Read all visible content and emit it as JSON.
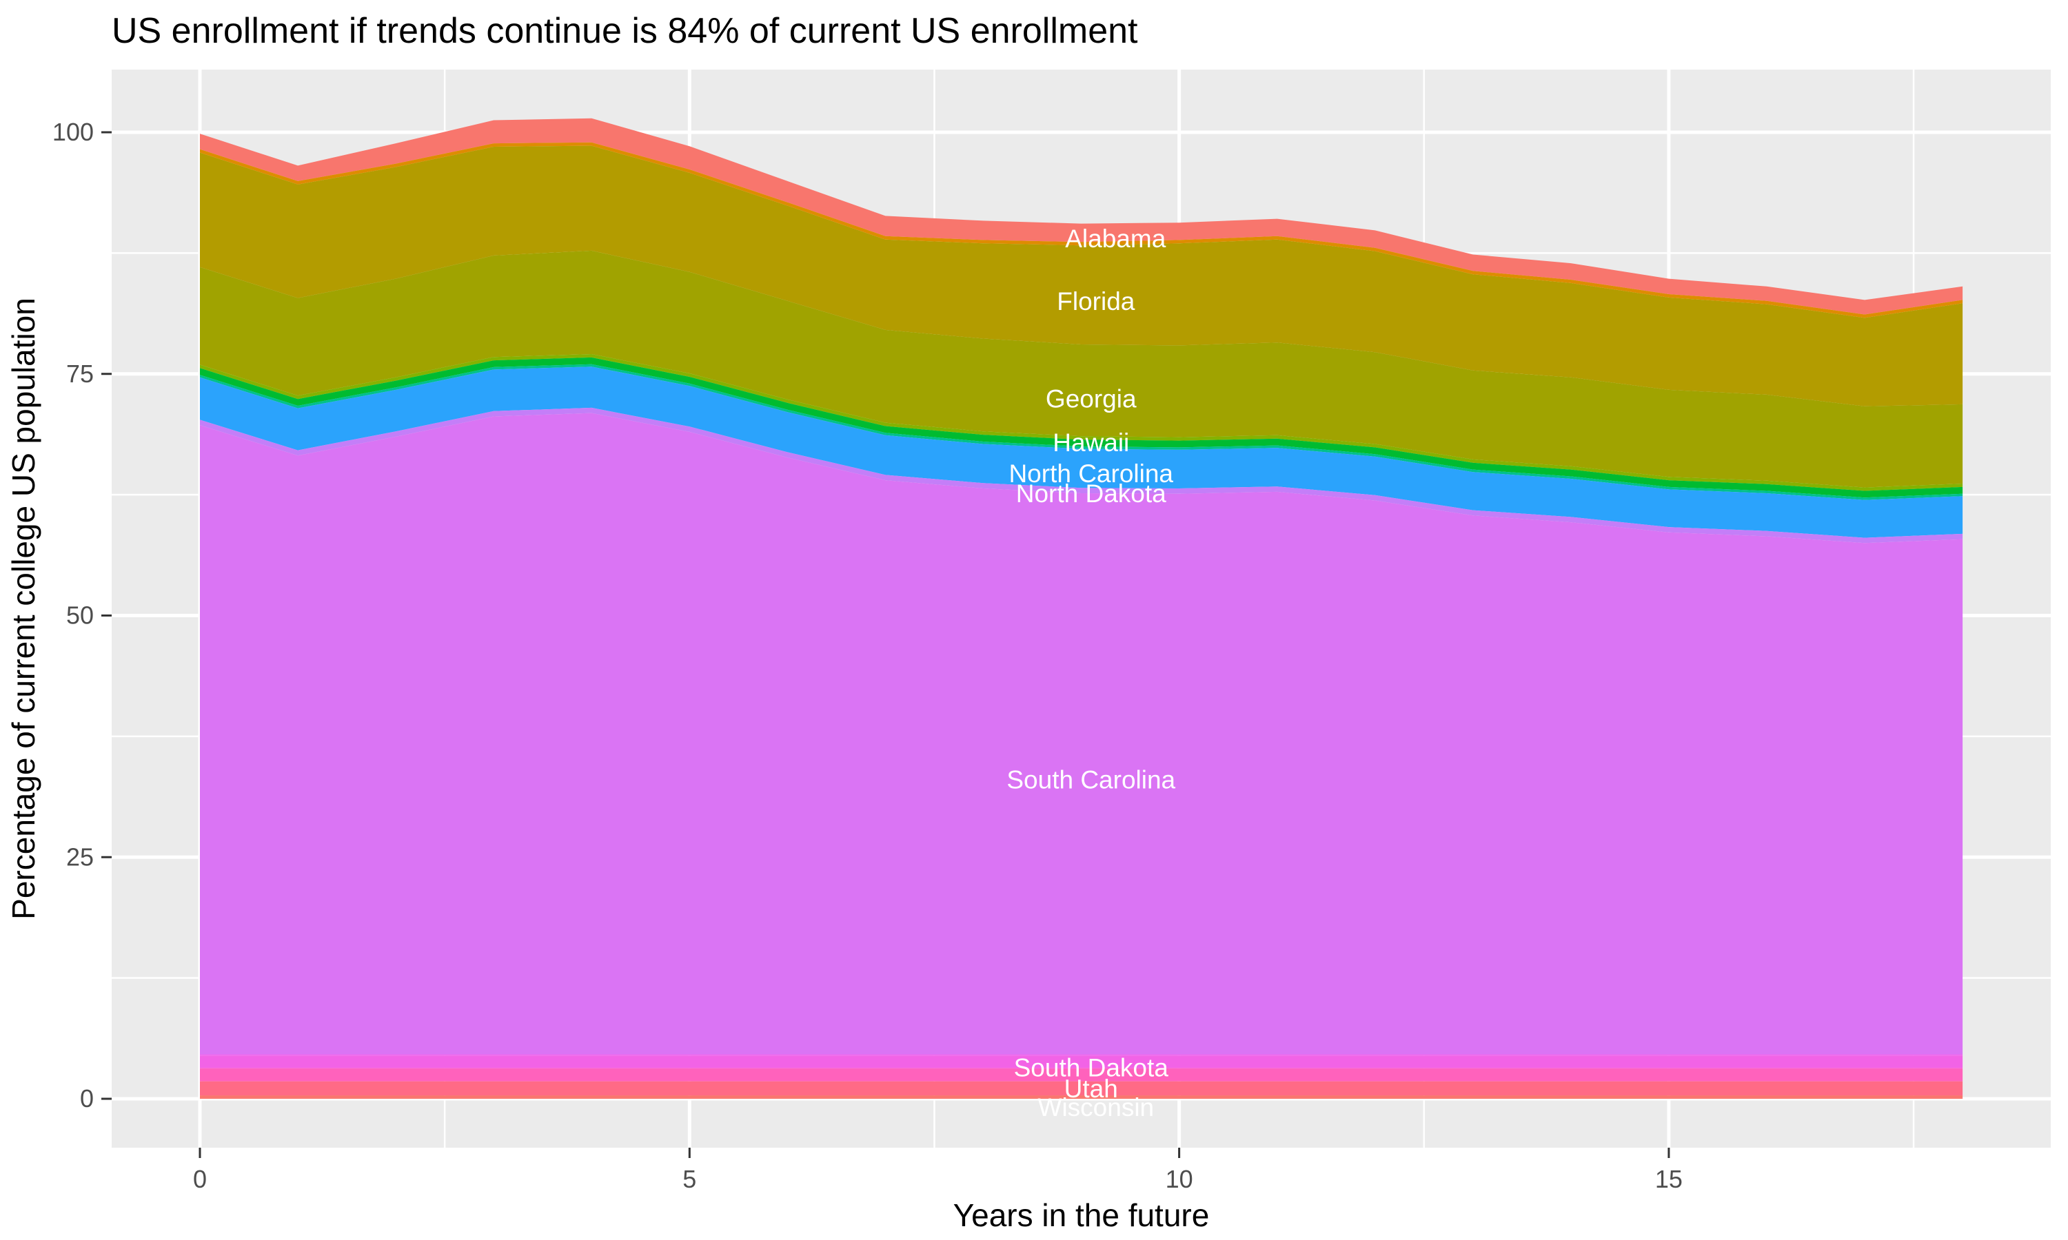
{
  "title": "US enrollment if trends continue is 84% of current US enrollment",
  "colors": {
    "panel_background": "#EBEBEB",
    "gridline": "#FFFFFF",
    "tick_text": "#4D4D4D",
    "title_text": "#000000",
    "band_label_text": "#FFFFFF"
  },
  "axes": {
    "x": {
      "title": "Years in the future",
      "tick_values": [
        0,
        5,
        10,
        15
      ],
      "tick_labels": [
        "0",
        "5",
        "10",
        "15"
      ],
      "minor_tick_values": [
        2.5,
        7.5,
        12.5,
        17.5
      ],
      "range": [
        0,
        18
      ]
    },
    "y": {
      "title": "Percentage of current college US population",
      "tick_values": [
        0,
        25,
        50,
        75,
        100
      ],
      "tick_labels": [
        "0",
        "25",
        "50",
        "75",
        "100"
      ],
      "minor_tick_values": [
        12.5,
        37.5,
        62.5,
        87.5
      ],
      "range": [
        0,
        101.4
      ]
    }
  },
  "chart_data": {
    "type": "area",
    "stacked": true,
    "stack_order": "first series listed is the top band",
    "grid": "major and minor white gridlines on grey panel",
    "legend_position": "none (direct white labels inside bands)",
    "x": [
      0,
      1,
      2,
      3,
      4,
      5,
      6,
      7,
      8,
      9,
      10,
      11,
      12,
      13,
      14,
      15,
      16,
      17,
      18
    ],
    "xlabel": "Years in the future",
    "ylabel": "Percentage of current college US population",
    "ylim": [
      0,
      101.4
    ],
    "series": [
      {
        "name": "Alabama",
        "label": "Alabama",
        "color": "#F8766D",
        "values": [
          1.6,
          1.6,
          2.1,
          2.4,
          2.5,
          2.4,
          2.2,
          2.1,
          2.0,
          1.9,
          1.8,
          1.8,
          1.8,
          1.7,
          1.7,
          1.6,
          1.5,
          1.5,
          1.4
        ]
      },
      {
        "name": "unlabeled-sliver-1",
        "label": null,
        "color": "#DE8C00",
        "values": [
          0.35,
          0.35,
          0.35,
          0.35,
          0.35,
          0.35,
          0.35,
          0.35,
          0.35,
          0.35,
          0.35,
          0.35,
          0.35,
          0.35,
          0.35,
          0.35,
          0.35,
          0.35,
          0.35
        ]
      },
      {
        "name": "Florida",
        "label": "Florida",
        "color": "#B39C00",
        "values": [
          11.85,
          11.75,
          11.55,
          11.25,
          10.85,
          10.25,
          9.85,
          9.35,
          9.85,
          10.25,
          10.55,
          10.65,
          10.45,
          9.95,
          9.75,
          9.55,
          9.35,
          9.15,
          10.45
        ]
      },
      {
        "name": "Georgia",
        "label": "Georgia",
        "color": "#A0A300",
        "values": [
          10.1,
          10.1,
          10.2,
          10.5,
          10.7,
          10.5,
          10.2,
          9.6,
          9.6,
          9.5,
          9.5,
          9.6,
          9.5,
          9.2,
          9.2,
          9.0,
          8.9,
          8.4,
          8.2
        ]
      },
      {
        "name": "unlabeled-sliver-2",
        "label": null,
        "color": "#85B200",
        "values": [
          0.35,
          0.35,
          0.35,
          0.35,
          0.35,
          0.35,
          0.35,
          0.35,
          0.35,
          0.35,
          0.35,
          0.35,
          0.35,
          0.35,
          0.35,
          0.35,
          0.35,
          0.35,
          0.35
        ]
      },
      {
        "name": "Hawaii",
        "label": "Hawaii",
        "color": "#00BB31",
        "values": [
          0.7,
          0.7,
          0.7,
          0.7,
          0.7,
          0.7,
          0.7,
          0.7,
          0.7,
          0.7,
          0.7,
          0.7,
          0.7,
          0.7,
          0.7,
          0.7,
          0.7,
          0.7,
          0.7
        ]
      },
      {
        "name": "unlabeled-sliver-3",
        "label": null,
        "color": "#00C08D",
        "values": [
          0.25,
          0.25,
          0.25,
          0.25,
          0.25,
          0.25,
          0.25,
          0.25,
          0.25,
          0.25,
          0.25,
          0.25,
          0.25,
          0.25,
          0.25,
          0.25,
          0.25,
          0.25,
          0.25
        ]
      },
      {
        "name": "North Carolina",
        "label": "North Carolina",
        "color": "#2BA3FC",
        "values": [
          4.4,
          4.35,
          4.3,
          4.3,
          4.25,
          4.2,
          4.15,
          4.1,
          4.05,
          4.05,
          4.0,
          4.0,
          4.0,
          3.95,
          3.95,
          3.9,
          3.9,
          3.9,
          3.9
        ]
      },
      {
        "name": "North Dakota",
        "label": "North Dakota",
        "color": "#C47EF8",
        "values": [
          0.55,
          0.55,
          0.55,
          0.55,
          0.55,
          0.55,
          0.55,
          0.55,
          0.55,
          0.55,
          0.55,
          0.55,
          0.55,
          0.55,
          0.55,
          0.55,
          0.55,
          0.55,
          0.55
        ]
      },
      {
        "name": "South Carolina",
        "label": "South Carolina",
        "color": "#DA74F4",
        "values": [
          65.1,
          61.95,
          63.9,
          66.0,
          66.35,
          64.4,
          61.75,
          59.4,
          58.55,
          58.05,
          58.0,
          58.2,
          57.3,
          55.75,
          55.05,
          54.0,
          53.6,
          52.9,
          53.3
        ]
      },
      {
        "name": "unlabeled-sliver-4",
        "label": null,
        "color": "#EF6BEF",
        "values": [
          0.15,
          0.15,
          0.15,
          0.15,
          0.15,
          0.15,
          0.15,
          0.15,
          0.15,
          0.15,
          0.15,
          0.15,
          0.15,
          0.15,
          0.15,
          0.15,
          0.15,
          0.15,
          0.15
        ]
      },
      {
        "name": "South Dakota",
        "label": "South Dakota",
        "color": "#F263E6",
        "values": [
          1.25,
          1.25,
          1.25,
          1.25,
          1.25,
          1.25,
          1.25,
          1.25,
          1.25,
          1.25,
          1.25,
          1.25,
          1.25,
          1.25,
          1.25,
          1.25,
          1.25,
          1.25,
          1.25
        ]
      },
      {
        "name": "unlabeled-sliver-5",
        "label": null,
        "color": "#FB63D2",
        "values": [
          0.1,
          0.1,
          0.1,
          0.1,
          0.1,
          0.1,
          0.1,
          0.1,
          0.1,
          0.1,
          0.1,
          0.1,
          0.1,
          0.1,
          0.1,
          0.1,
          0.1,
          0.1,
          0.1
        ]
      },
      {
        "name": "Utah",
        "label": "Utah",
        "color": "#FF62BC",
        "values": [
          1.3,
          1.3,
          1.3,
          1.3,
          1.3,
          1.3,
          1.3,
          1.3,
          1.3,
          1.3,
          1.3,
          1.3,
          1.3,
          1.3,
          1.3,
          1.3,
          1.3,
          1.3,
          1.3
        ]
      },
      {
        "name": "Wisconsin",
        "label": "Wisconsin",
        "color": "#FF6A86",
        "values": [
          1.45,
          1.45,
          1.45,
          1.45,
          1.45,
          1.45,
          1.45,
          1.45,
          1.45,
          1.45,
          1.45,
          1.45,
          1.45,
          1.45,
          1.45,
          1.45,
          1.45,
          1.45,
          1.45
        ]
      },
      {
        "name": "unlabeled-sliver-6",
        "label": null,
        "color": "#FA7169",
        "values": [
          0.2,
          0.2,
          0.2,
          0.2,
          0.2,
          0.2,
          0.2,
          0.2,
          0.2,
          0.2,
          0.2,
          0.2,
          0.2,
          0.2,
          0.2,
          0.2,
          0.2,
          0.2,
          0.2
        ]
      },
      {
        "name": "unlabeled-sliver-7",
        "label": null,
        "color": "#F8766D",
        "values": [
          0.15,
          0.15,
          0.15,
          0.15,
          0.15,
          0.15,
          0.15,
          0.15,
          0.15,
          0.15,
          0.15,
          0.15,
          0.15,
          0.15,
          0.15,
          0.15,
          0.15,
          0.15,
          0.15
        ]
      }
    ],
    "band_labels": [
      {
        "text": "Alabama",
        "x": 9.35,
        "y": 89.0
      },
      {
        "text": "Florida",
        "x": 9.15,
        "y": 82.5
      },
      {
        "text": "Georgia",
        "x": 9.1,
        "y": 72.4
      },
      {
        "text": "Hawaii",
        "x": 9.1,
        "y": 67.9
      },
      {
        "text": "North Carolina",
        "x": 9.1,
        "y": 64.7
      },
      {
        "text": "North Dakota",
        "x": 9.1,
        "y": 62.6
      },
      {
        "text": "South Carolina",
        "x": 9.1,
        "y": 33.0
      },
      {
        "text": "South Dakota",
        "x": 9.1,
        "y": 3.2
      },
      {
        "text": "Utah",
        "x": 9.1,
        "y": 1.05
      },
      {
        "text": "Wisconsin",
        "x": 9.15,
        "y": -0.9
      }
    ]
  }
}
